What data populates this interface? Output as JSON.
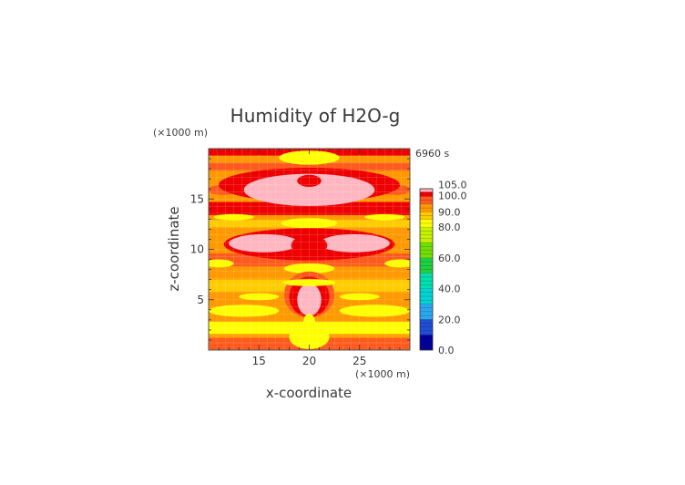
{
  "chart_data": {
    "type": "heatmap",
    "title": "Humidity of H2O-g",
    "xlabel": "x-coordinate",
    "ylabel": "z-coordinate",
    "x_unit": "(×1000 m)",
    "y_unit": "(×1000 m)",
    "time_label": "6960 s",
    "xlim": [
      10,
      30
    ],
    "ylim": [
      0,
      20
    ],
    "x_ticks": [
      "15",
      "20",
      "25"
    ],
    "y_ticks": [
      "5",
      "10",
      "15"
    ],
    "colorbar": {
      "labels": [
        "0.0",
        "20.0",
        "40.0",
        "60.0",
        "80.0",
        "90.0",
        "100.0",
        "105.0"
      ],
      "levels": [
        {
          "min": 0,
          "max": 10,
          "color": "#0000a0"
        },
        {
          "min": 10,
          "max": 20,
          "color": "#1e4fd6"
        },
        {
          "min": 20,
          "max": 30,
          "color": "#28a8f0"
        },
        {
          "min": 30,
          "max": 40,
          "color": "#00d4d4"
        },
        {
          "min": 40,
          "max": 50,
          "color": "#00e0b0"
        },
        {
          "min": 50,
          "max": 60,
          "color": "#20d040"
        },
        {
          "min": 60,
          "max": 70,
          "color": "#70e000"
        },
        {
          "min": 70,
          "max": 80,
          "color": "#c8f000"
        },
        {
          "min": 80,
          "max": 85,
          "color": "#ffff00"
        },
        {
          "min": 85,
          "max": 90,
          "color": "#ffcc00"
        },
        {
          "min": 90,
          "max": 95,
          "color": "#ff9900"
        },
        {
          "min": 95,
          "max": 100,
          "color": "#ff5a1e"
        },
        {
          "min": 100,
          "max": 103,
          "color": "#ee0000"
        },
        {
          "min": 103,
          "max": 105,
          "color": "#ffb6c1"
        }
      ]
    },
    "regions": [
      {
        "shape": "rect",
        "x": [
          10,
          30
        ],
        "y": [
          0,
          20
        ],
        "value": 92
      },
      {
        "shape": "band",
        "y": [
          0.0,
          1.2
        ],
        "value": 96
      },
      {
        "shape": "band",
        "y": [
          1.6,
          2.8
        ],
        "value": 82
      },
      {
        "shape": "band",
        "y": [
          5.8,
          7.0
        ],
        "value": 88
      },
      {
        "shape": "band",
        "y": [
          8.3,
          9.6
        ],
        "value": 97
      },
      {
        "shape": "band",
        "y": [
          12.2,
          12.9
        ],
        "value": 88
      },
      {
        "shape": "band",
        "y": [
          13.4,
          14.7
        ],
        "value": 101
      },
      {
        "shape": "band",
        "y": [
          17.8,
          18.6
        ],
        "value": 97
      },
      {
        "shape": "band",
        "y": [
          19.3,
          20.0
        ],
        "value": 101
      },
      {
        "shape": "ellipse",
        "cx": 20,
        "cy": 19.1,
        "rx": 3.0,
        "ry": 0.7,
        "value": 82
      },
      {
        "shape": "ellipse",
        "cx": 11.5,
        "cy": 15.9,
        "rx": 1.6,
        "ry": 0.5,
        "value": 96
      },
      {
        "shape": "ellipse",
        "cx": 28.5,
        "cy": 15.9,
        "rx": 1.6,
        "ry": 0.5,
        "value": 96
      },
      {
        "shape": "ellipse",
        "cx": 20,
        "cy": 16.4,
        "rx": 9.0,
        "ry": 1.7,
        "value": 101
      },
      {
        "shape": "ellipse",
        "cx": 20,
        "cy": 15.9,
        "rx": 6.5,
        "ry": 1.6,
        "value": 104
      },
      {
        "shape": "ellipse",
        "cx": 20,
        "cy": 16.8,
        "rx": 1.2,
        "ry": 0.6,
        "value": 101
      },
      {
        "shape": "ellipse",
        "cx": 20,
        "cy": 12.6,
        "rx": 2.8,
        "ry": 0.5,
        "value": 82
      },
      {
        "shape": "ellipse",
        "cx": 12.5,
        "cy": 13.2,
        "rx": 2.0,
        "ry": 0.3,
        "value": 82
      },
      {
        "shape": "ellipse",
        "cx": 27.5,
        "cy": 13.2,
        "rx": 2.0,
        "ry": 0.3,
        "value": 82
      },
      {
        "shape": "ellipse",
        "cx": 20,
        "cy": 10.5,
        "rx": 8.5,
        "ry": 1.6,
        "value": 101
      },
      {
        "shape": "ellipse",
        "cx": 15.5,
        "cy": 10.6,
        "rx": 3.5,
        "ry": 0.9,
        "value": 104
      },
      {
        "shape": "ellipse",
        "cx": 24.5,
        "cy": 10.6,
        "rx": 3.5,
        "ry": 0.9,
        "value": 104
      },
      {
        "shape": "ellipse",
        "cx": 20,
        "cy": 10.4,
        "rx": 1.8,
        "ry": 1.0,
        "value": 101
      },
      {
        "shape": "ellipse",
        "cx": 11.0,
        "cy": 8.6,
        "rx": 1.5,
        "ry": 0.4,
        "value": 82
      },
      {
        "shape": "ellipse",
        "cx": 29.0,
        "cy": 8.6,
        "rx": 1.5,
        "ry": 0.4,
        "value": 82
      },
      {
        "shape": "ellipse",
        "cx": 20,
        "cy": 8.1,
        "rx": 2.5,
        "ry": 0.5,
        "value": 82
      },
      {
        "shape": "ellipse",
        "cx": 20,
        "cy": 5.5,
        "rx": 2.5,
        "ry": 2.3,
        "value": 96
      },
      {
        "shape": "ellipse",
        "cx": 20,
        "cy": 5.3,
        "rx": 2.0,
        "ry": 2.0,
        "value": 101
      },
      {
        "shape": "ellipse",
        "cx": 20,
        "cy": 5.0,
        "rx": 1.2,
        "ry": 1.6,
        "value": 104
      },
      {
        "shape": "ellipse",
        "cx": 15.0,
        "cy": 5.3,
        "rx": 2.0,
        "ry": 0.35,
        "value": 82
      },
      {
        "shape": "ellipse",
        "cx": 25.0,
        "cy": 5.3,
        "rx": 2.0,
        "ry": 0.35,
        "value": 82
      },
      {
        "shape": "ellipse",
        "cx": 20,
        "cy": 6.7,
        "rx": 2.6,
        "ry": 0.35,
        "value": 82
      },
      {
        "shape": "ellipse",
        "cx": 13.5,
        "cy": 3.9,
        "rx": 3.5,
        "ry": 0.6,
        "value": 82
      },
      {
        "shape": "ellipse",
        "cx": 26.5,
        "cy": 3.9,
        "rx": 3.5,
        "ry": 0.6,
        "value": 82
      },
      {
        "shape": "ellipse",
        "cx": 20,
        "cy": 1.3,
        "rx": 2.0,
        "ry": 1.2,
        "value": 82
      },
      {
        "shape": "ellipse",
        "cx": 20,
        "cy": 2.7,
        "rx": 0.6,
        "ry": 0.9,
        "value": 82
      }
    ]
  }
}
